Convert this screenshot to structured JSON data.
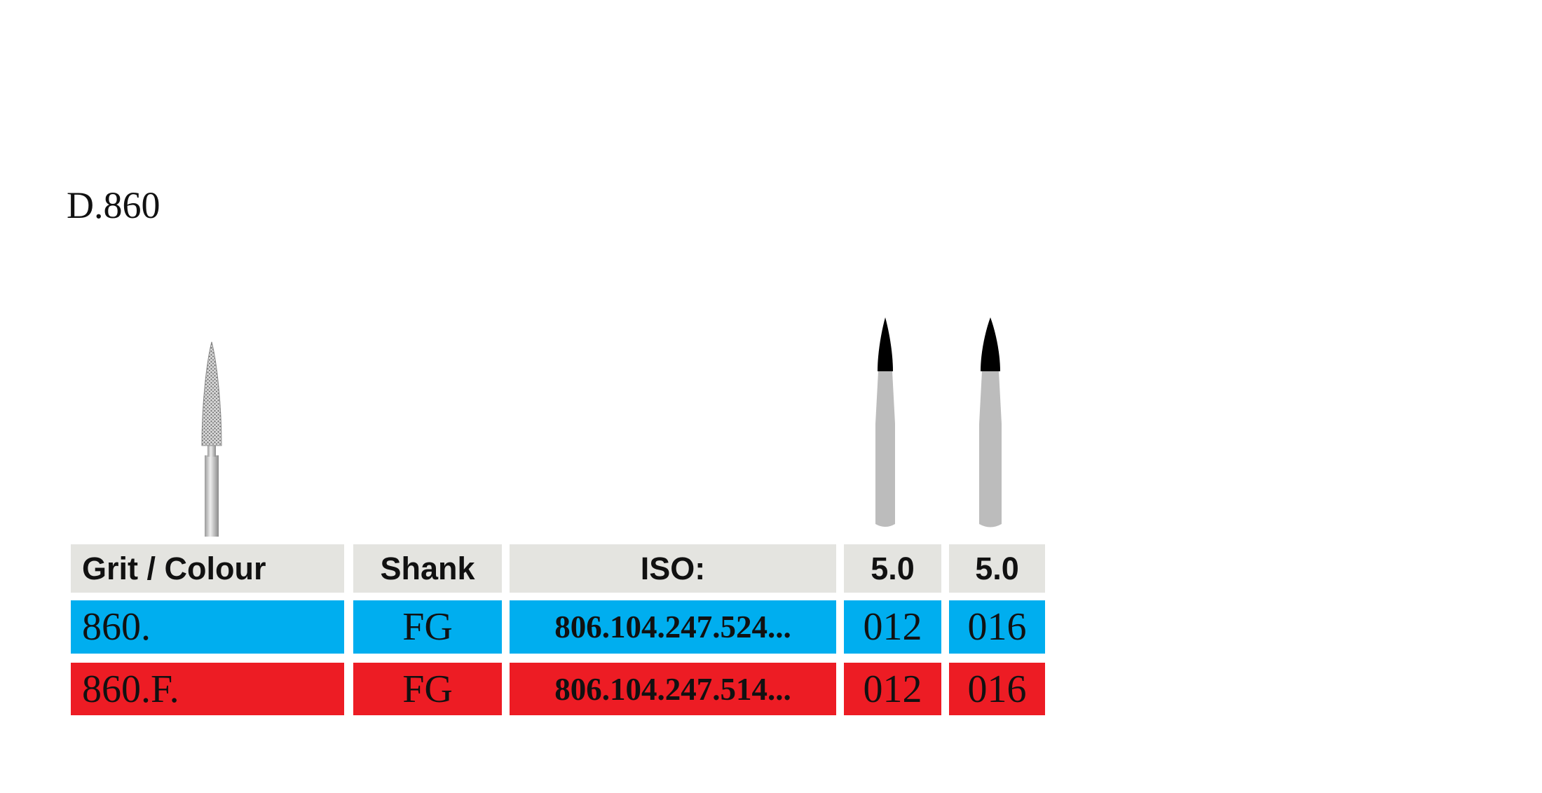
{
  "header": {
    "title": "D.860"
  },
  "table": {
    "header": [
      "Grit / Colour",
      "Shank",
      "ISO:",
      "5.0",
      "5.0"
    ],
    "rows": [
      [
        "860.",
        "FG",
        "806.104.247.524...",
        "012",
        "016"
      ],
      [
        "860.F.",
        "FG",
        "806.104.247.514...",
        "012",
        "016"
      ]
    ]
  }
}
